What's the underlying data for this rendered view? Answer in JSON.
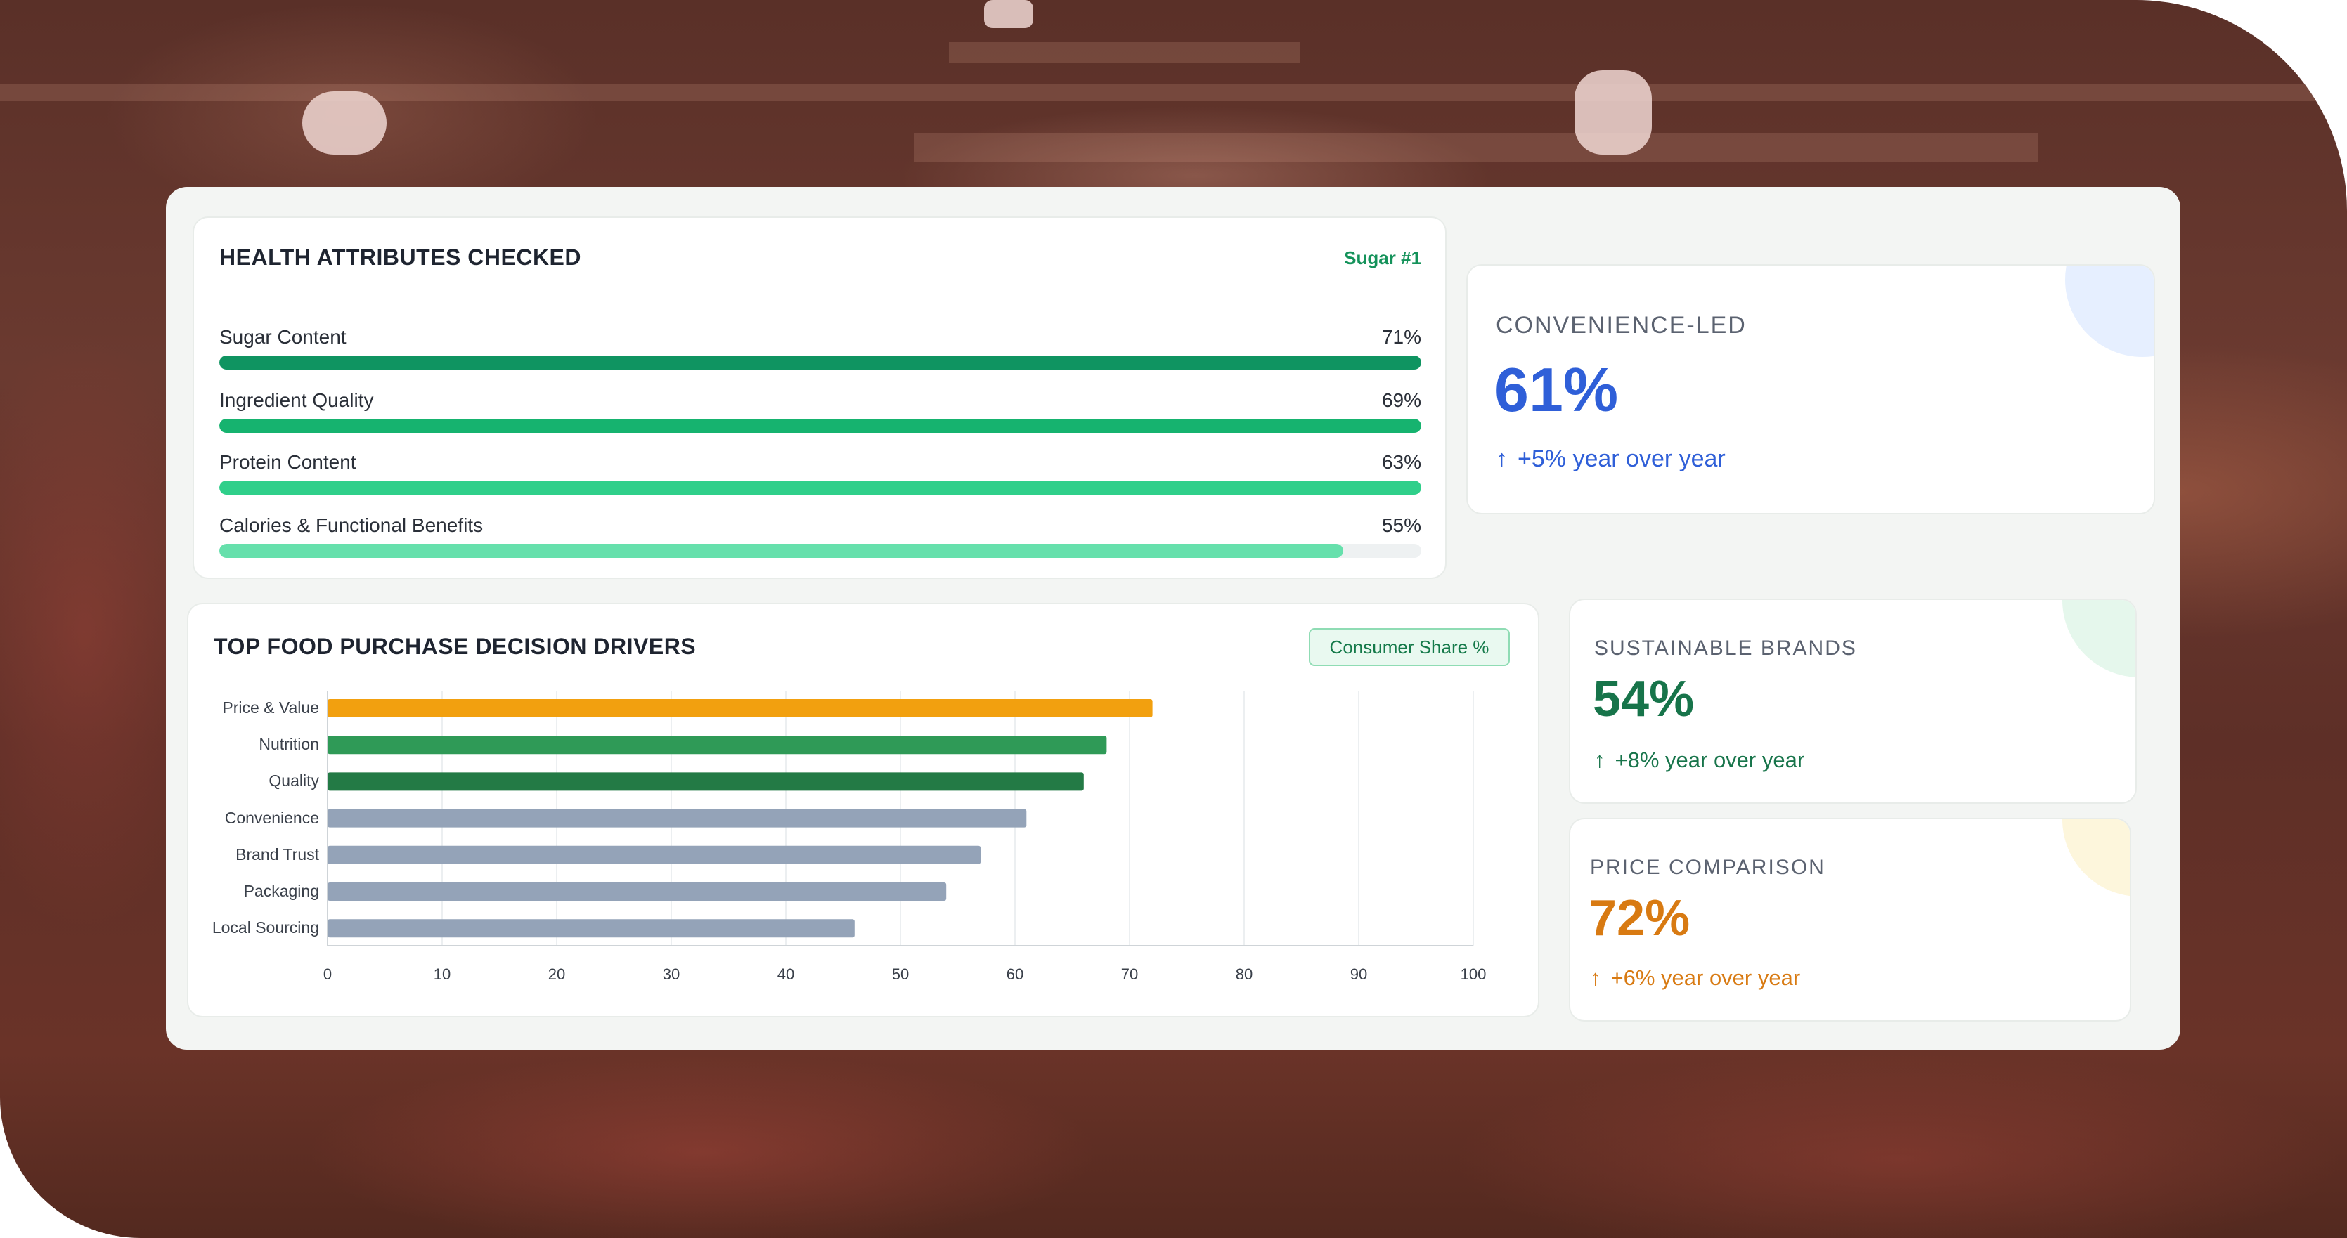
{
  "health": {
    "title": "HEALTH ATTRIBUTES CHECKED",
    "tag": "Sugar #1",
    "items": [
      {
        "label": "Sugar Content",
        "value_label": "71%",
        "value": 71,
        "color": "#0f9461"
      },
      {
        "label": "Ingredient Quality",
        "value_label": "69%",
        "value": 69,
        "color": "#16b36f"
      },
      {
        "label": "Protein Content",
        "value_label": "63%",
        "value": 63,
        "color": "#2fcf8a"
      },
      {
        "label": "Calories & Functional Benefits",
        "value_label": "55%",
        "value": 55,
        "color": "#66e0ac"
      }
    ]
  },
  "stats": [
    {
      "label": "CONVENIENCE-LED",
      "value": "61%",
      "change": "+5% year over year",
      "color": "#2f5fd8",
      "arrow": "up-arrow"
    },
    {
      "label": "SUSTAINABLE BRANDS",
      "value": "54%",
      "change": "+8% year over year",
      "color": "#17744a",
      "arrow": "up-arrow"
    },
    {
      "label": "PRICE COMPARISON",
      "value": "72%",
      "change": "+6% year over year",
      "color": "#d87a12",
      "arrow": "up-arrow"
    }
  ],
  "chart_data": {
    "type": "bar",
    "orientation": "horizontal",
    "title": "TOP FOOD PURCHASE DECISION DRIVERS",
    "legend": "Consumer Share %",
    "categories": [
      "Price & Value",
      "Nutrition",
      "Quality",
      "Convenience",
      "Brand Trust",
      "Packaging",
      "Local Sourcing"
    ],
    "series": [
      {
        "name": "Consumer Share %",
        "values": [
          72,
          68,
          66,
          61,
          57,
          54,
          46
        ]
      }
    ],
    "colors": [
      "#f2a00f",
      "#2f9a57",
      "#237a45",
      "#94a3b8",
      "#94a3b8",
      "#94a3b8",
      "#94a3b8"
    ],
    "xlim": [
      0,
      100
    ],
    "xticks": [
      0,
      10,
      20,
      30,
      40,
      50,
      60,
      70,
      80,
      90,
      100
    ],
    "grid": true
  }
}
